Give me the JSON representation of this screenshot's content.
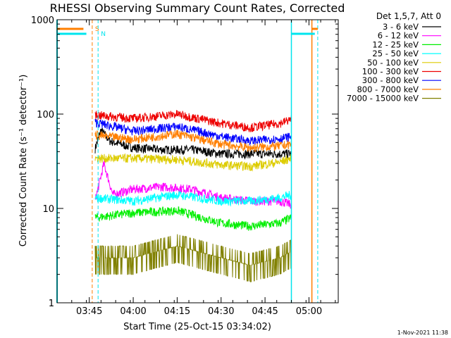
{
  "chart_data": {
    "type": "line",
    "title": "RHESSI Observing Summary Count Rates, Corrected",
    "xlabel": "Start Time (25-Oct-15 03:34:02)",
    "ylabel": "Corrected Count Rate (s⁻¹ detector⁻¹)",
    "yscale": "log",
    "ylim": [
      1,
      1000
    ],
    "xlim": [
      "03:34",
      "05:10"
    ],
    "x_ticks": [
      "03:45",
      "04:00",
      "04:15",
      "04:30",
      "04:45",
      "05:00"
    ],
    "y_ticks": [
      "1",
      "10",
      "100",
      "1000"
    ],
    "legend_title": "Det 1,5,7, Att 0",
    "legend_position": "right, outside plot",
    "timestamp": "1-Nov-2021 11:38",
    "markers": [
      {
        "label": "S",
        "color": "#ff7f00",
        "time": "03:46"
      },
      {
        "label": "N",
        "color": "#00e5ee",
        "time": "03:48"
      }
    ],
    "series": [
      {
        "name": "3 - 6 keV",
        "color": "#000000",
        "level": 40,
        "points": [
          [
            "03:47",
            43
          ],
          [
            "03:49",
            68
          ],
          [
            "03:52",
            52
          ],
          [
            "04:00",
            44
          ],
          [
            "04:10",
            42
          ],
          [
            "04:20",
            42
          ],
          [
            "04:30",
            38
          ],
          [
            "04:40",
            38
          ],
          [
            "04:50",
            38
          ],
          [
            "04:54",
            38
          ]
        ]
      },
      {
        "name": "6 - 12 keV",
        "color": "#ff00ff",
        "level": 16,
        "points": [
          [
            "03:47",
            12
          ],
          [
            "03:50",
            30
          ],
          [
            "03:53",
            14
          ],
          [
            "04:00",
            16
          ],
          [
            "04:10",
            17
          ],
          [
            "04:20",
            16
          ],
          [
            "04:30",
            13
          ],
          [
            "04:40",
            12
          ],
          [
            "04:50",
            12
          ],
          [
            "04:54",
            11
          ]
        ]
      },
      {
        "name": "12 - 25 keV",
        "color": "#00ee00",
        "level": 8,
        "points": [
          [
            "03:47",
            8
          ],
          [
            "04:00",
            9
          ],
          [
            "04:15",
            9.5
          ],
          [
            "04:30",
            7
          ],
          [
            "04:40",
            6.5
          ],
          [
            "04:50",
            7
          ],
          [
            "04:54",
            8
          ]
        ]
      },
      {
        "name": "25 - 50 keV",
        "color": "#00ffff",
        "level": 13,
        "points": [
          [
            "03:47",
            13
          ],
          [
            "04:00",
            12
          ],
          [
            "04:15",
            14
          ],
          [
            "04:30",
            12
          ],
          [
            "04:40",
            12
          ],
          [
            "04:50",
            13
          ],
          [
            "04:54",
            14
          ]
        ]
      },
      {
        "name": "50 - 100 keV",
        "color": "#ddcc00",
        "level": 33,
        "points": [
          [
            "03:47",
            34
          ],
          [
            "04:00",
            34
          ],
          [
            "04:15",
            33
          ],
          [
            "04:30",
            29
          ],
          [
            "04:40",
            28
          ],
          [
            "04:50",
            31
          ],
          [
            "04:54",
            34
          ]
        ]
      },
      {
        "name": "100 - 300 keV",
        "color": "#ee0000",
        "level": 90,
        "points": [
          [
            "03:47",
            98
          ],
          [
            "04:00",
            90
          ],
          [
            "04:15",
            100
          ],
          [
            "04:30",
            80
          ],
          [
            "04:40",
            72
          ],
          [
            "04:50",
            80
          ],
          [
            "04:54",
            88
          ]
        ]
      },
      {
        "name": "300 - 800 keV",
        "color": "#0000ff",
        "level": 60,
        "points": [
          [
            "03:47",
            82
          ],
          [
            "04:00",
            66
          ],
          [
            "04:15",
            74
          ],
          [
            "04:30",
            58
          ],
          [
            "04:40",
            52
          ],
          [
            "04:50",
            55
          ],
          [
            "04:54",
            58
          ]
        ]
      },
      {
        "name": "800 - 7000 keV",
        "color": "#ff7f00",
        "level": 50,
        "points": [
          [
            "03:47",
            60
          ],
          [
            "04:00",
            54
          ],
          [
            "04:15",
            62
          ],
          [
            "04:30",
            48
          ],
          [
            "04:40",
            44
          ],
          [
            "04:50",
            46
          ],
          [
            "04:54",
            48
          ]
        ]
      },
      {
        "name": "7000 - 15000 keV",
        "color": "#808000",
        "level": 3,
        "points": [
          [
            "03:47",
            3
          ],
          [
            "04:00",
            3
          ],
          [
            "04:15",
            4
          ],
          [
            "04:30",
            3
          ],
          [
            "04:40",
            2.5
          ],
          [
            "04:50",
            3
          ],
          [
            "04:54",
            3.5
          ]
        ]
      }
    ]
  }
}
